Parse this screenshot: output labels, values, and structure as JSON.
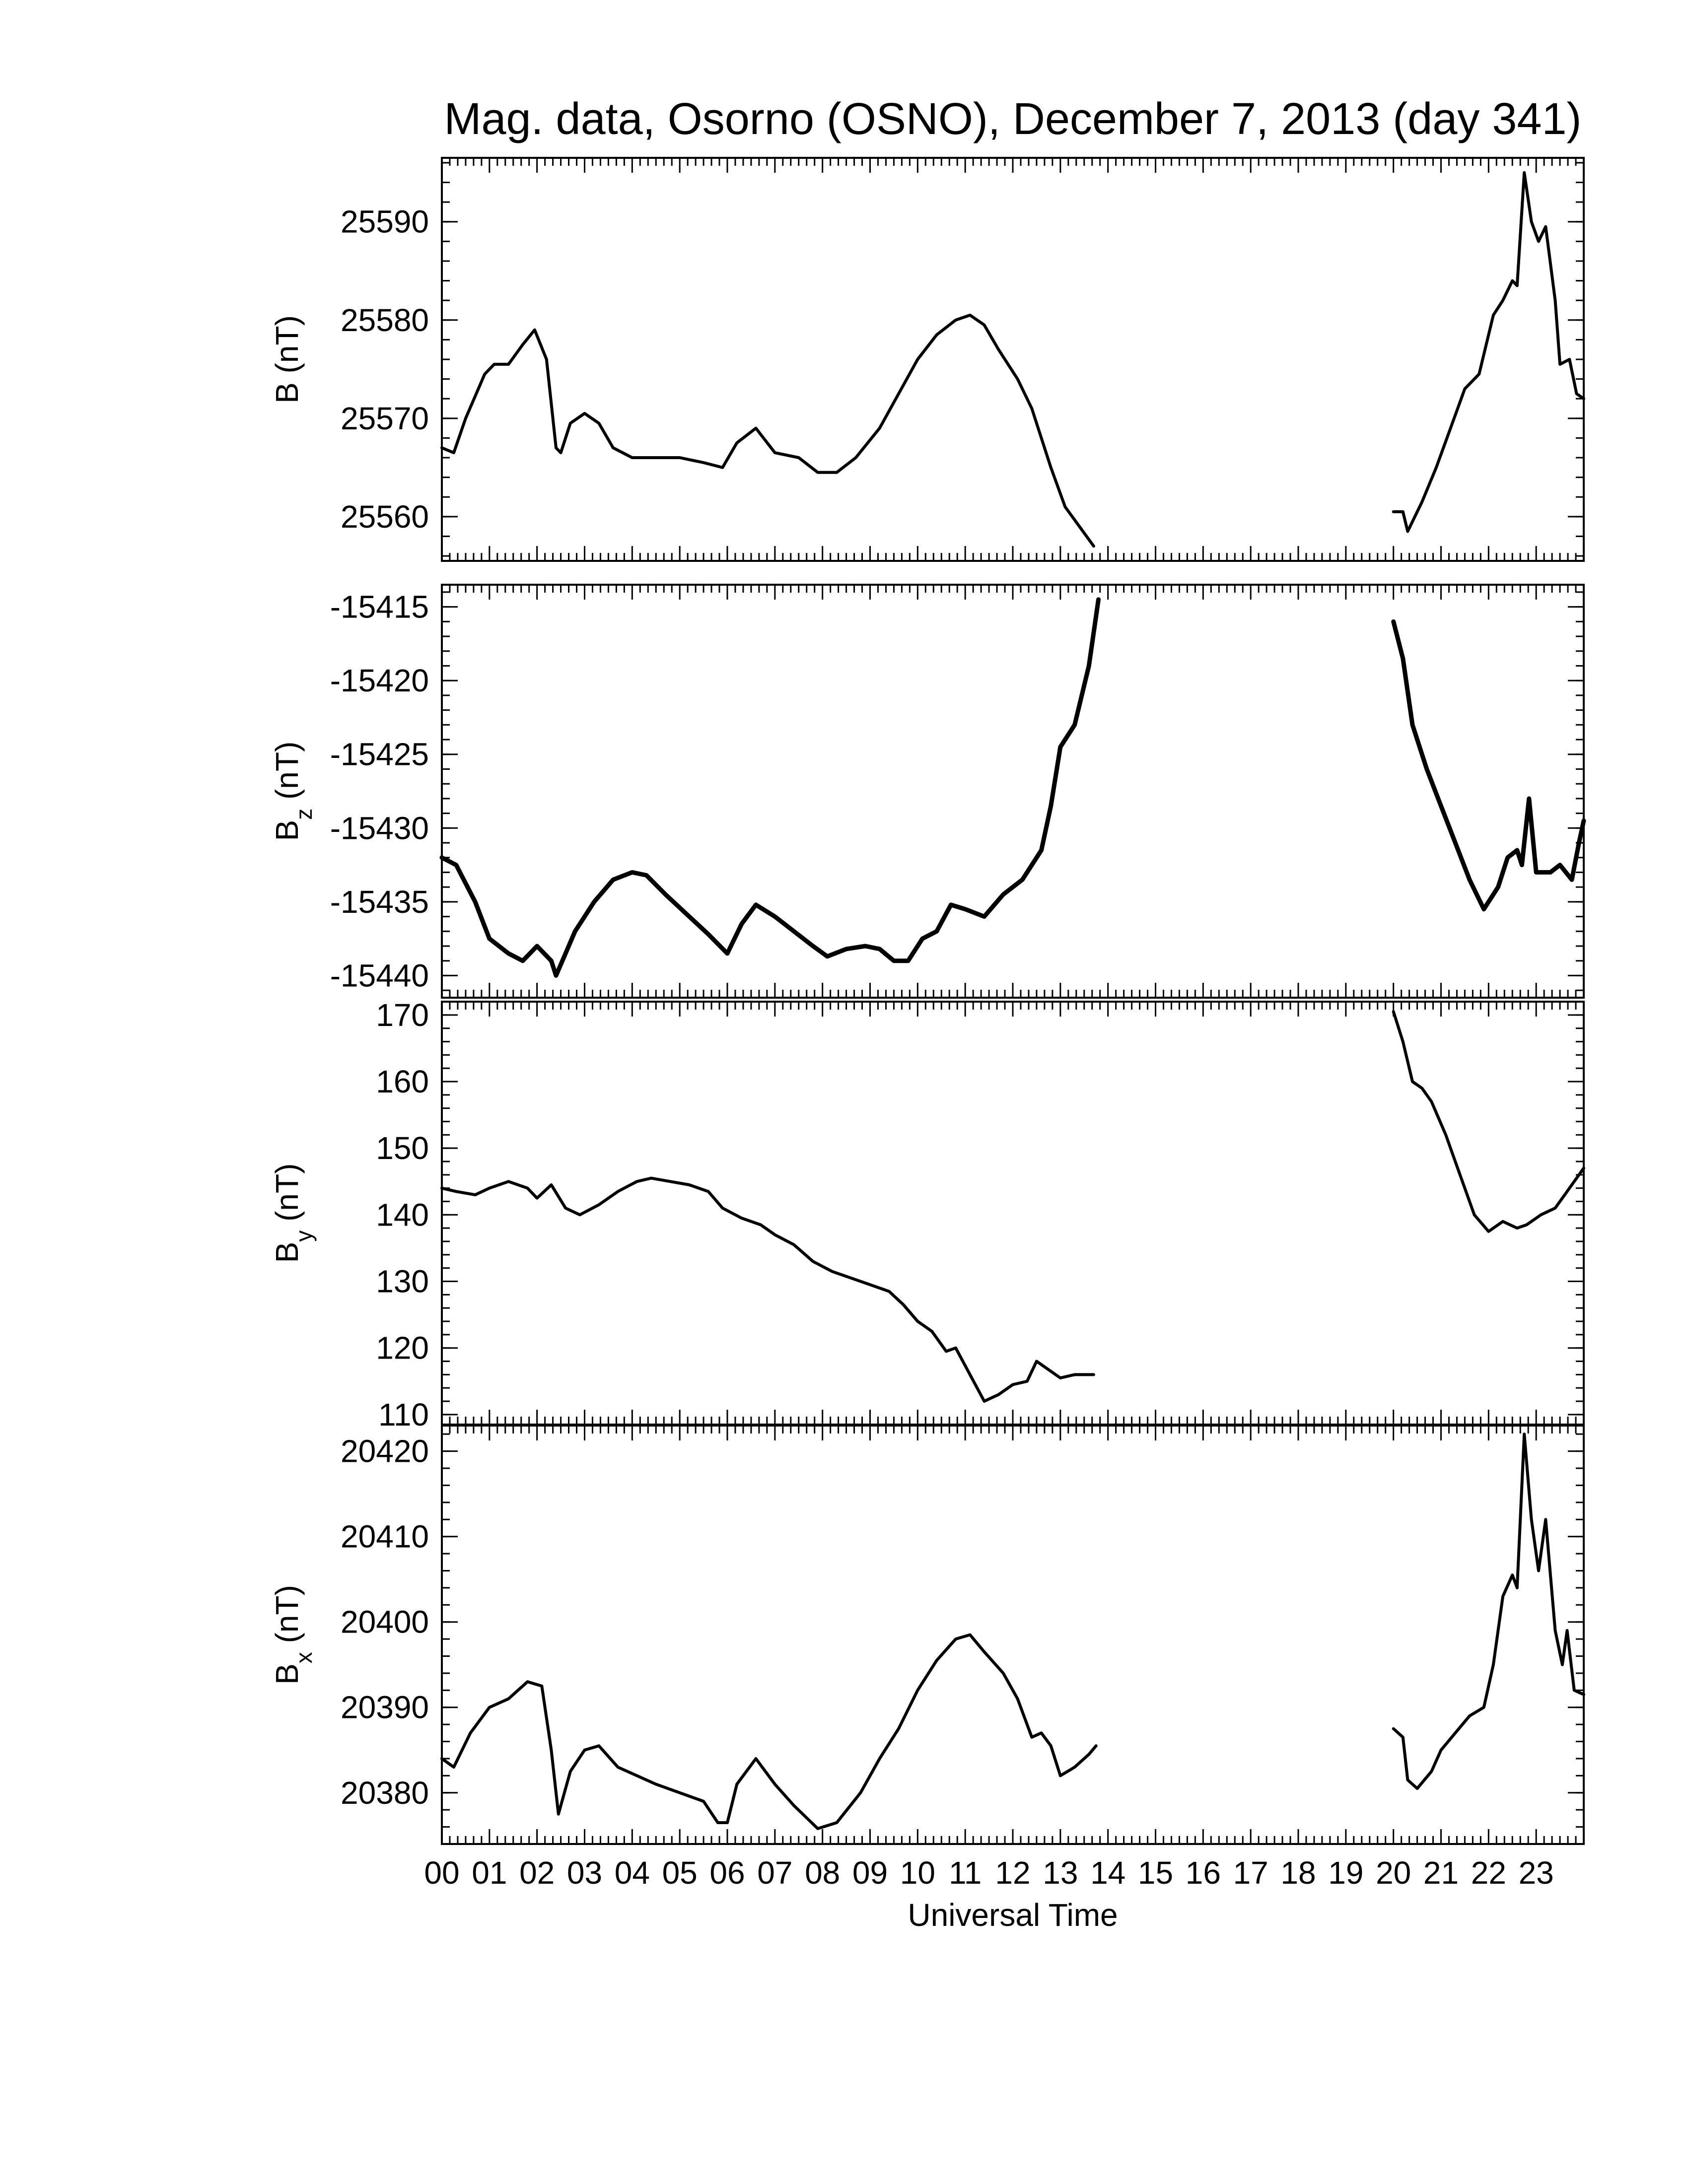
{
  "chart_data": {
    "type": "line",
    "title": "Mag. data, Osorno (OSNO), December 7, 2013 (day 341)",
    "xlabel": "Universal Time",
    "x_unit": "hours UT",
    "xlim": [
      0,
      24
    ],
    "x_tick_labels": [
      "00",
      "01",
      "02",
      "03",
      "04",
      "05",
      "06",
      "07",
      "08",
      "09",
      "10",
      "11",
      "12",
      "13",
      "14",
      "15",
      "16",
      "17",
      "18",
      "19",
      "20",
      "21",
      "22",
      "23"
    ],
    "line_color": "#000000",
    "grid": false,
    "panels": [
      {
        "ylabel_main": "B",
        "ylabel_sub": "",
        "ylabel_unit": "(nT)",
        "ylim": [
          25555.5,
          25596.5
        ],
        "y_ticks": [
          25560,
          25570,
          25580,
          25590
        ],
        "y_tick_labels": [
          "25560",
          "25570",
          "25580",
          "25590"
        ],
        "segments": [
          [
            [
              0,
              25567
            ],
            [
              0.25,
              25566.5
            ],
            [
              0.5,
              25570
            ],
            [
              0.9,
              25574.5
            ],
            [
              1.1,
              25575.5
            ],
            [
              1.4,
              25575.5
            ],
            [
              1.7,
              25577.5
            ],
            [
              1.95,
              25579
            ],
            [
              2.2,
              25576
            ],
            [
              2.4,
              25567
            ],
            [
              2.5,
              25566.5
            ],
            [
              2.7,
              25569.5
            ],
            [
              3.0,
              25570.5
            ],
            [
              3.3,
              25569.5
            ],
            [
              3.6,
              25567
            ],
            [
              4.0,
              25566
            ],
            [
              4.5,
              25566
            ],
            [
              5.0,
              25566
            ],
            [
              5.5,
              25565.5
            ],
            [
              5.9,
              25565
            ],
            [
              6.2,
              25567.5
            ],
            [
              6.6,
              25569
            ],
            [
              7.0,
              25566.5
            ],
            [
              7.5,
              25566
            ],
            [
              7.9,
              25564.5
            ],
            [
              8.3,
              25564.5
            ],
            [
              8.7,
              25566
            ],
            [
              9.2,
              25569
            ],
            [
              9.6,
              25572.5
            ],
            [
              10.0,
              25576
            ],
            [
              10.4,
              25578.5
            ],
            [
              10.8,
              25580
            ],
            [
              11.1,
              25580.5
            ],
            [
              11.4,
              25579.5
            ],
            [
              11.7,
              25577
            ],
            [
              12.1,
              25574
            ],
            [
              12.4,
              25571
            ],
            [
              12.8,
              25565
            ],
            [
              13.1,
              25561
            ],
            [
              13.4,
              25559
            ],
            [
              13.7,
              25557
            ]
          ],
          [
            [
              20.0,
              25560.5
            ],
            [
              20.2,
              25560.5
            ],
            [
              20.3,
              25558.5
            ],
            [
              20.6,
              25561.5
            ],
            [
              20.9,
              25565
            ],
            [
              21.2,
              25569
            ],
            [
              21.5,
              25573
            ],
            [
              21.8,
              25574.5
            ],
            [
              22.1,
              25580.5
            ],
            [
              22.3,
              25582
            ],
            [
              22.5,
              25584
            ],
            [
              22.6,
              25583.5
            ],
            [
              22.75,
              25595
            ],
            [
              22.9,
              25590
            ],
            [
              23.05,
              25588
            ],
            [
              23.2,
              25589.5
            ],
            [
              23.4,
              25582
            ],
            [
              23.5,
              25575.5
            ],
            [
              23.7,
              25576
            ],
            [
              23.85,
              25572.5
            ],
            [
              24.0,
              25572
            ]
          ]
        ]
      },
      {
        "ylabel_main": "B",
        "ylabel_sub": "z",
        "ylabel_unit": "(nT)",
        "ylim": [
          -15441.5,
          -15413.5
        ],
        "y_ticks": [
          -15440,
          -15435,
          -15430,
          -15425,
          -15420,
          -15415
        ],
        "y_tick_labels": [
          "-15440",
          "-15435",
          "-15430",
          "-15425",
          "-15420",
          "-15415"
        ],
        "segments": [
          [
            [
              0,
              -15432
            ],
            [
              0.3,
              -15432.5
            ],
            [
              0.7,
              -15435
            ],
            [
              1.0,
              -15437.5
            ],
            [
              1.4,
              -15438.5
            ],
            [
              1.7,
              -15439
            ],
            [
              2.0,
              -15438
            ],
            [
              2.3,
              -15439
            ],
            [
              2.4,
              -15440
            ],
            [
              2.8,
              -15437
            ],
            [
              3.2,
              -15435
            ],
            [
              3.6,
              -15433.5
            ],
            [
              4.0,
              -15433
            ],
            [
              4.3,
              -15433.2
            ],
            [
              4.7,
              -15434.5
            ],
            [
              5.2,
              -15436
            ],
            [
              5.6,
              -15437.2
            ],
            [
              6.0,
              -15438.5
            ],
            [
              6.3,
              -15436.5
            ],
            [
              6.6,
              -15435.2
            ],
            [
              7.0,
              -15436
            ],
            [
              7.4,
              -15437
            ],
            [
              7.8,
              -15438
            ],
            [
              8.1,
              -15438.7
            ],
            [
              8.5,
              -15438.2
            ],
            [
              8.9,
              -15438
            ],
            [
              9.2,
              -15438.2
            ],
            [
              9.5,
              -15439
            ],
            [
              9.8,
              -15439
            ],
            [
              10.1,
              -15437.5
            ],
            [
              10.4,
              -15437
            ],
            [
              10.7,
              -15435.2
            ],
            [
              11.0,
              -15435.5
            ],
            [
              11.4,
              -15436
            ],
            [
              11.8,
              -15434.5
            ],
            [
              12.2,
              -15433.5
            ],
            [
              12.6,
              -15431.5
            ],
            [
              12.8,
              -15428.5
            ],
            [
              13.0,
              -15424.5
            ],
            [
              13.3,
              -15423
            ],
            [
              13.6,
              -15419
            ],
            [
              13.8,
              -15414.5
            ]
          ],
          [
            [
              20.0,
              -15416
            ],
            [
              20.2,
              -15418.5
            ],
            [
              20.4,
              -15423
            ],
            [
              20.7,
              -15426
            ],
            [
              21.0,
              -15428.5
            ],
            [
              21.3,
              -15431
            ],
            [
              21.6,
              -15433.5
            ],
            [
              21.9,
              -15435.5
            ],
            [
              22.2,
              -15434
            ],
            [
              22.4,
              -15432
            ],
            [
              22.6,
              -15431.5
            ],
            [
              22.7,
              -15432.5
            ],
            [
              22.85,
              -15428
            ],
            [
              23.0,
              -15433
            ],
            [
              23.3,
              -15433
            ],
            [
              23.5,
              -15432.5
            ],
            [
              23.75,
              -15433.5
            ],
            [
              23.9,
              -15431
            ],
            [
              24.0,
              -15429.5
            ]
          ]
        ]
      },
      {
        "ylabel_main": "B",
        "ylabel_sub": "y",
        "ylabel_unit": "(nT)",
        "ylim": [
          108.5,
          172
        ],
        "y_ticks": [
          110,
          120,
          130,
          140,
          150,
          160,
          170
        ],
        "y_tick_labels": [
          "110",
          "120",
          "130",
          "140",
          "150",
          "160",
          "170"
        ],
        "segments": [
          [
            [
              0,
              144
            ],
            [
              0.3,
              143.5
            ],
            [
              0.7,
              143
            ],
            [
              1.0,
              144
            ],
            [
              1.4,
              145
            ],
            [
              1.8,
              144
            ],
            [
              2.0,
              142.5
            ],
            [
              2.3,
              144.5
            ],
            [
              2.6,
              141
            ],
            [
              2.9,
              140
            ],
            [
              3.3,
              141.5
            ],
            [
              3.7,
              143.5
            ],
            [
              4.1,
              145
            ],
            [
              4.4,
              145.5
            ],
            [
              4.8,
              145
            ],
            [
              5.2,
              144.5
            ],
            [
              5.6,
              143.5
            ],
            [
              5.9,
              141
            ],
            [
              6.3,
              139.5
            ],
            [
              6.7,
              138.5
            ],
            [
              7.0,
              137
            ],
            [
              7.4,
              135.5
            ],
            [
              7.8,
              133
            ],
            [
              8.2,
              131.5
            ],
            [
              8.6,
              130.5
            ],
            [
              9.0,
              129.5
            ],
            [
              9.4,
              128.5
            ],
            [
              9.7,
              126.5
            ],
            [
              10.0,
              124
            ],
            [
              10.3,
              122.5
            ],
            [
              10.6,
              119.5
            ],
            [
              10.8,
              120
            ],
            [
              11.1,
              116
            ],
            [
              11.4,
              112
            ],
            [
              11.7,
              113
            ],
            [
              12.0,
              114.5
            ],
            [
              12.3,
              115
            ],
            [
              12.5,
              118
            ],
            [
              12.8,
              116.5
            ],
            [
              13.0,
              115.5
            ],
            [
              13.3,
              116
            ],
            [
              13.7,
              116
            ]
          ],
          [
            [
              20.0,
              170.5
            ],
            [
              20.2,
              166
            ],
            [
              20.4,
              160
            ],
            [
              20.6,
              159
            ],
            [
              20.8,
              157
            ],
            [
              21.1,
              152
            ],
            [
              21.4,
              146
            ],
            [
              21.7,
              140
            ],
            [
              22.0,
              137.5
            ],
            [
              22.3,
              139
            ],
            [
              22.6,
              138
            ],
            [
              22.8,
              138.5
            ],
            [
              23.1,
              140
            ],
            [
              23.4,
              141
            ],
            [
              23.6,
              143
            ],
            [
              23.8,
              145
            ],
            [
              24.0,
              147
            ]
          ]
        ]
      },
      {
        "ylabel_main": "B",
        "ylabel_sub": "x",
        "ylabel_unit": "(nT)",
        "ylim": [
          20374,
          20423
        ],
        "y_ticks": [
          20380,
          20390,
          20400,
          20410,
          20420
        ],
        "y_tick_labels": [
          "20380",
          "20390",
          "20400",
          "20410",
          "20420"
        ],
        "segments": [
          [
            [
              0,
              20384
            ],
            [
              0.25,
              20383
            ],
            [
              0.6,
              20387
            ],
            [
              1.0,
              20390
            ],
            [
              1.4,
              20391
            ],
            [
              1.8,
              20393
            ],
            [
              2.1,
              20392.5
            ],
            [
              2.3,
              20385
            ],
            [
              2.45,
              20377.5
            ],
            [
              2.7,
              20382.5
            ],
            [
              3.0,
              20385
            ],
            [
              3.3,
              20385.5
            ],
            [
              3.7,
              20383
            ],
            [
              4.1,
              20382
            ],
            [
              4.5,
              20381
            ],
            [
              5.0,
              20380
            ],
            [
              5.5,
              20379
            ],
            [
              5.8,
              20376.5
            ],
            [
              6.0,
              20376.5
            ],
            [
              6.2,
              20381
            ],
            [
              6.6,
              20384
            ],
            [
              7.0,
              20381
            ],
            [
              7.4,
              20378.5
            ],
            [
              7.9,
              20375.8
            ],
            [
              8.3,
              20376.5
            ],
            [
              8.8,
              20380
            ],
            [
              9.2,
              20384
            ],
            [
              9.6,
              20387.5
            ],
            [
              10.0,
              20392
            ],
            [
              10.4,
              20395.5
            ],
            [
              10.8,
              20398
            ],
            [
              11.1,
              20398.5
            ],
            [
              11.4,
              20396.5
            ],
            [
              11.8,
              20394
            ],
            [
              12.1,
              20391
            ],
            [
              12.4,
              20386.5
            ],
            [
              12.6,
              20387
            ],
            [
              12.8,
              20385.5
            ],
            [
              13.0,
              20382
            ],
            [
              13.3,
              20383
            ],
            [
              13.6,
              20384.5
            ],
            [
              13.75,
              20385.5
            ]
          ],
          [
            [
              20.0,
              20387.5
            ],
            [
              20.2,
              20386.5
            ],
            [
              20.3,
              20381.5
            ],
            [
              20.5,
              20380.5
            ],
            [
              20.8,
              20382.5
            ],
            [
              21.0,
              20385
            ],
            [
              21.3,
              20387
            ],
            [
              21.6,
              20389
            ],
            [
              21.9,
              20390
            ],
            [
              22.1,
              20395
            ],
            [
              22.3,
              20403
            ],
            [
              22.5,
              20405.5
            ],
            [
              22.6,
              20404
            ],
            [
              22.75,
              20422
            ],
            [
              22.9,
              20412
            ],
            [
              23.05,
              20406
            ],
            [
              23.2,
              20412
            ],
            [
              23.4,
              20399
            ],
            [
              23.55,
              20395
            ],
            [
              23.65,
              20399
            ],
            [
              23.8,
              20392
            ],
            [
              24.0,
              20391.5
            ]
          ]
        ]
      }
    ]
  }
}
